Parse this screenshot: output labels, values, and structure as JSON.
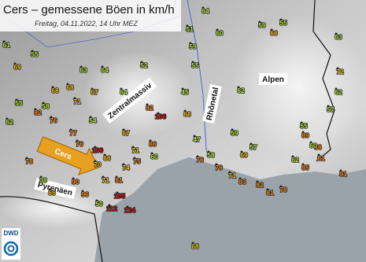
{
  "header": {
    "title": "Cers – gemessene Böen in km/h",
    "subtitle": "Freitag, 04.11.2022, 14 Uhr MEZ"
  },
  "labels": {
    "massif": "Zentralmassiv",
    "rhone": "Rhônetal",
    "alps": "Alpen",
    "pyrenees": "Pyrenäen",
    "wind": "Cers"
  },
  "logo": "DWD",
  "stations": [
    64,
    51,
    60,
    59,
    66,
    55,
    63,
    72,
    62,
    57,
    61,
    55,
    69,
    63,
    64,
    59,
    55,
    52,
    68,
    68,
    55,
    58,
    67,
    64,
    82,
    71,
    62,
    76,
    54,
    77,
    106,
    82,
    68,
    45,
    62,
    47,
    76,
    100,
    66,
    67,
    71,
    75,
    86,
    60,
    78,
    70,
    74,
    38,
    90,
    71,
    81,
    65,
    96,
    105,
    112,
    124,
    50,
    59,
    57,
    69,
    89,
    88,
    55,
    62,
    85,
    81,
    91,
    76,
    58,
    71,
    83,
    82,
    81,
    78,
    76,
    68,
    60
  ]
}
